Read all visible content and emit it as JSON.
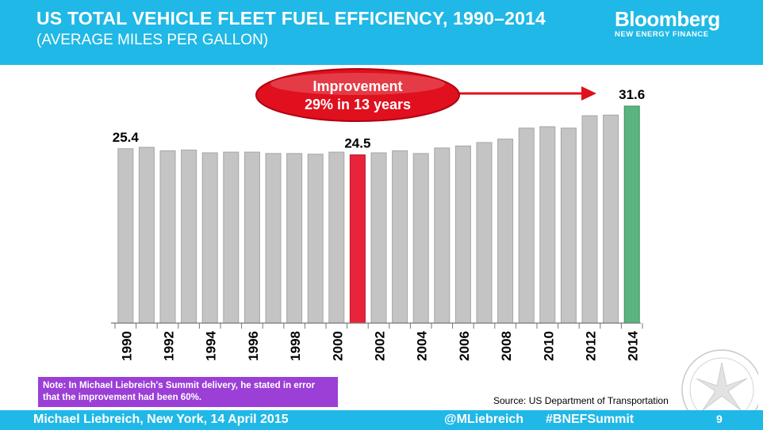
{
  "header": {
    "title": "US TOTAL VEHICLE FLEET FUEL EFFICIENCY, 1990–2014",
    "subtitle": "(AVERAGE MILES PER GALLON)",
    "logo_main": "Bloomberg",
    "logo_sub": "NEW ENERGY FINANCE"
  },
  "callout": {
    "line1": "Improvement",
    "line2": "29% in 13 years"
  },
  "note": "Note: In Michael Liebreich's Summit delivery, he stated in error that the improvement had been 60%.",
  "source": "Source: US Department of Transportation",
  "footer": {
    "left": "Michael Liebreich, New York, 14 April 2015",
    "handle": "@MLiebreich",
    "tag": "#BNEFSummit",
    "page": "9"
  },
  "colors": {
    "header_bg": "#20b8e6",
    "bar_default": "#c4c4c4",
    "bar_highlight_low": "#e8243a",
    "bar_highlight_end": "#5ab47e",
    "callout": "#e0101e",
    "note_bg": "#9b3fd6"
  },
  "chart_data": {
    "type": "bar",
    "categories": [
      "1990",
      "1991",
      "1992",
      "1993",
      "1994",
      "1995",
      "1996",
      "1997",
      "1998",
      "1999",
      "2000",
      "2001",
      "2002",
      "2003",
      "2004",
      "2005",
      "2006",
      "2007",
      "2008",
      "2009",
      "2010",
      "2011",
      "2012",
      "2013",
      "2014"
    ],
    "tick_labels": [
      "1990",
      "1992",
      "1994",
      "1996",
      "1998",
      "2000",
      "2002",
      "2004",
      "2006",
      "2008",
      "2010",
      "2012",
      "2014"
    ],
    "values": [
      25.4,
      25.6,
      25.1,
      25.2,
      24.8,
      24.9,
      24.9,
      24.7,
      24.7,
      24.6,
      24.9,
      24.5,
      24.8,
      25.1,
      24.7,
      25.5,
      25.8,
      26.3,
      26.8,
      28.4,
      28.6,
      28.4,
      30.2,
      30.3,
      31.6
    ],
    "data_labels": [
      {
        "category": "1990",
        "text": "25.4"
      },
      {
        "category": "2001",
        "text": "24.5"
      },
      {
        "category": "2014",
        "text": "31.6"
      }
    ],
    "highlight": {
      "2001": "bar_highlight_low",
      "2014": "bar_highlight_end"
    },
    "ylim": [
      0,
      31.6
    ],
    "grid": false,
    "legend": "none",
    "xlabel": "",
    "ylabel": ""
  }
}
